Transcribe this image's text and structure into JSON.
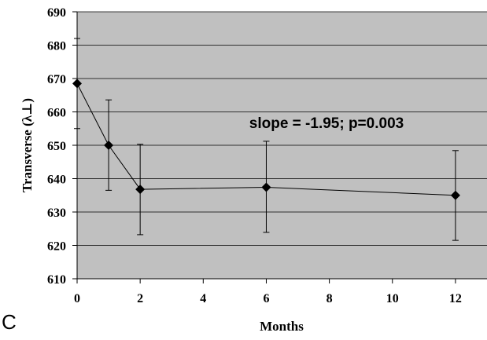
{
  "panel_label": "C",
  "chart_data": {
    "type": "line",
    "x": [
      0,
      1,
      2,
      6,
      12
    ],
    "series": [
      {
        "values": [
          668.5,
          650,
          636.8,
          637.4,
          635
        ],
        "error_low": [
          655,
          636.5,
          623.2,
          623.9,
          621.5
        ],
        "error_high": [
          682,
          663.6,
          650.3,
          651.2,
          648.4
        ],
        "marker": "diamond",
        "color": "#000000"
      }
    ],
    "xlabel": "Months",
    "ylabel": "Transverse  (λ⊥)",
    "xlim": [
      0,
      13
    ],
    "ylim": [
      610,
      690
    ],
    "xticks": [
      "0",
      "2",
      "4",
      "6",
      "8",
      "10",
      "12"
    ],
    "yticks": [
      "610",
      "620",
      "630",
      "640",
      "650",
      "660",
      "670",
      "680",
      "690"
    ],
    "annotation": "slope = -1.95; p=0.003",
    "grid": true,
    "plot_background": "#c0c0c0",
    "gridline_color": "#000000"
  }
}
